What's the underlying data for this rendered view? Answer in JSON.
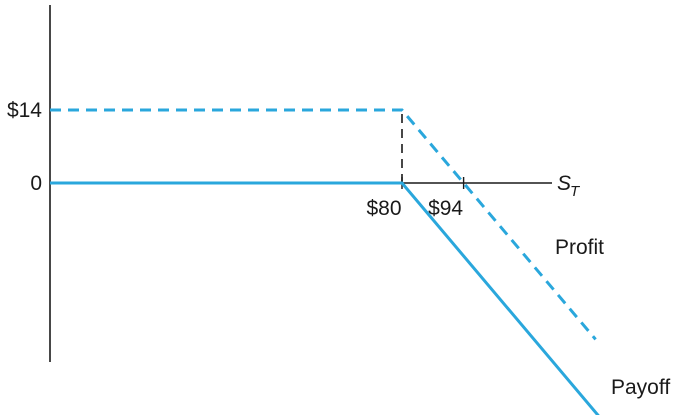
{
  "chart_data": {
    "type": "line",
    "xlabel": "S",
    "xlabel_subscript": "T",
    "ylabel": "",
    "x_ticks": [
      {
        "value": 80,
        "label": "$80"
      },
      {
        "value": 94,
        "label": "$94"
      }
    ],
    "y_ticks": [
      {
        "value": 0,
        "label": "0"
      },
      {
        "value": 14,
        "label": "$14"
      }
    ],
    "xlim": [
      0,
      130
    ],
    "ylim": [
      -47,
      32
    ],
    "series": [
      {
        "name": "Payoff",
        "style": "solid",
        "color": "#2aa7dc",
        "points": [
          [
            0,
            0
          ],
          [
            80,
            0
          ],
          [
            126,
            -46
          ]
        ]
      },
      {
        "name": "Profit",
        "style": "dashed",
        "color": "#2aa7dc",
        "points": [
          [
            0,
            14
          ],
          [
            80,
            14
          ],
          [
            124,
            -30
          ]
        ]
      }
    ],
    "guides": [
      {
        "style": "dashed",
        "color": "#1a1a1a",
        "from": [
          80,
          0
        ],
        "to": [
          80,
          14
        ]
      }
    ]
  }
}
